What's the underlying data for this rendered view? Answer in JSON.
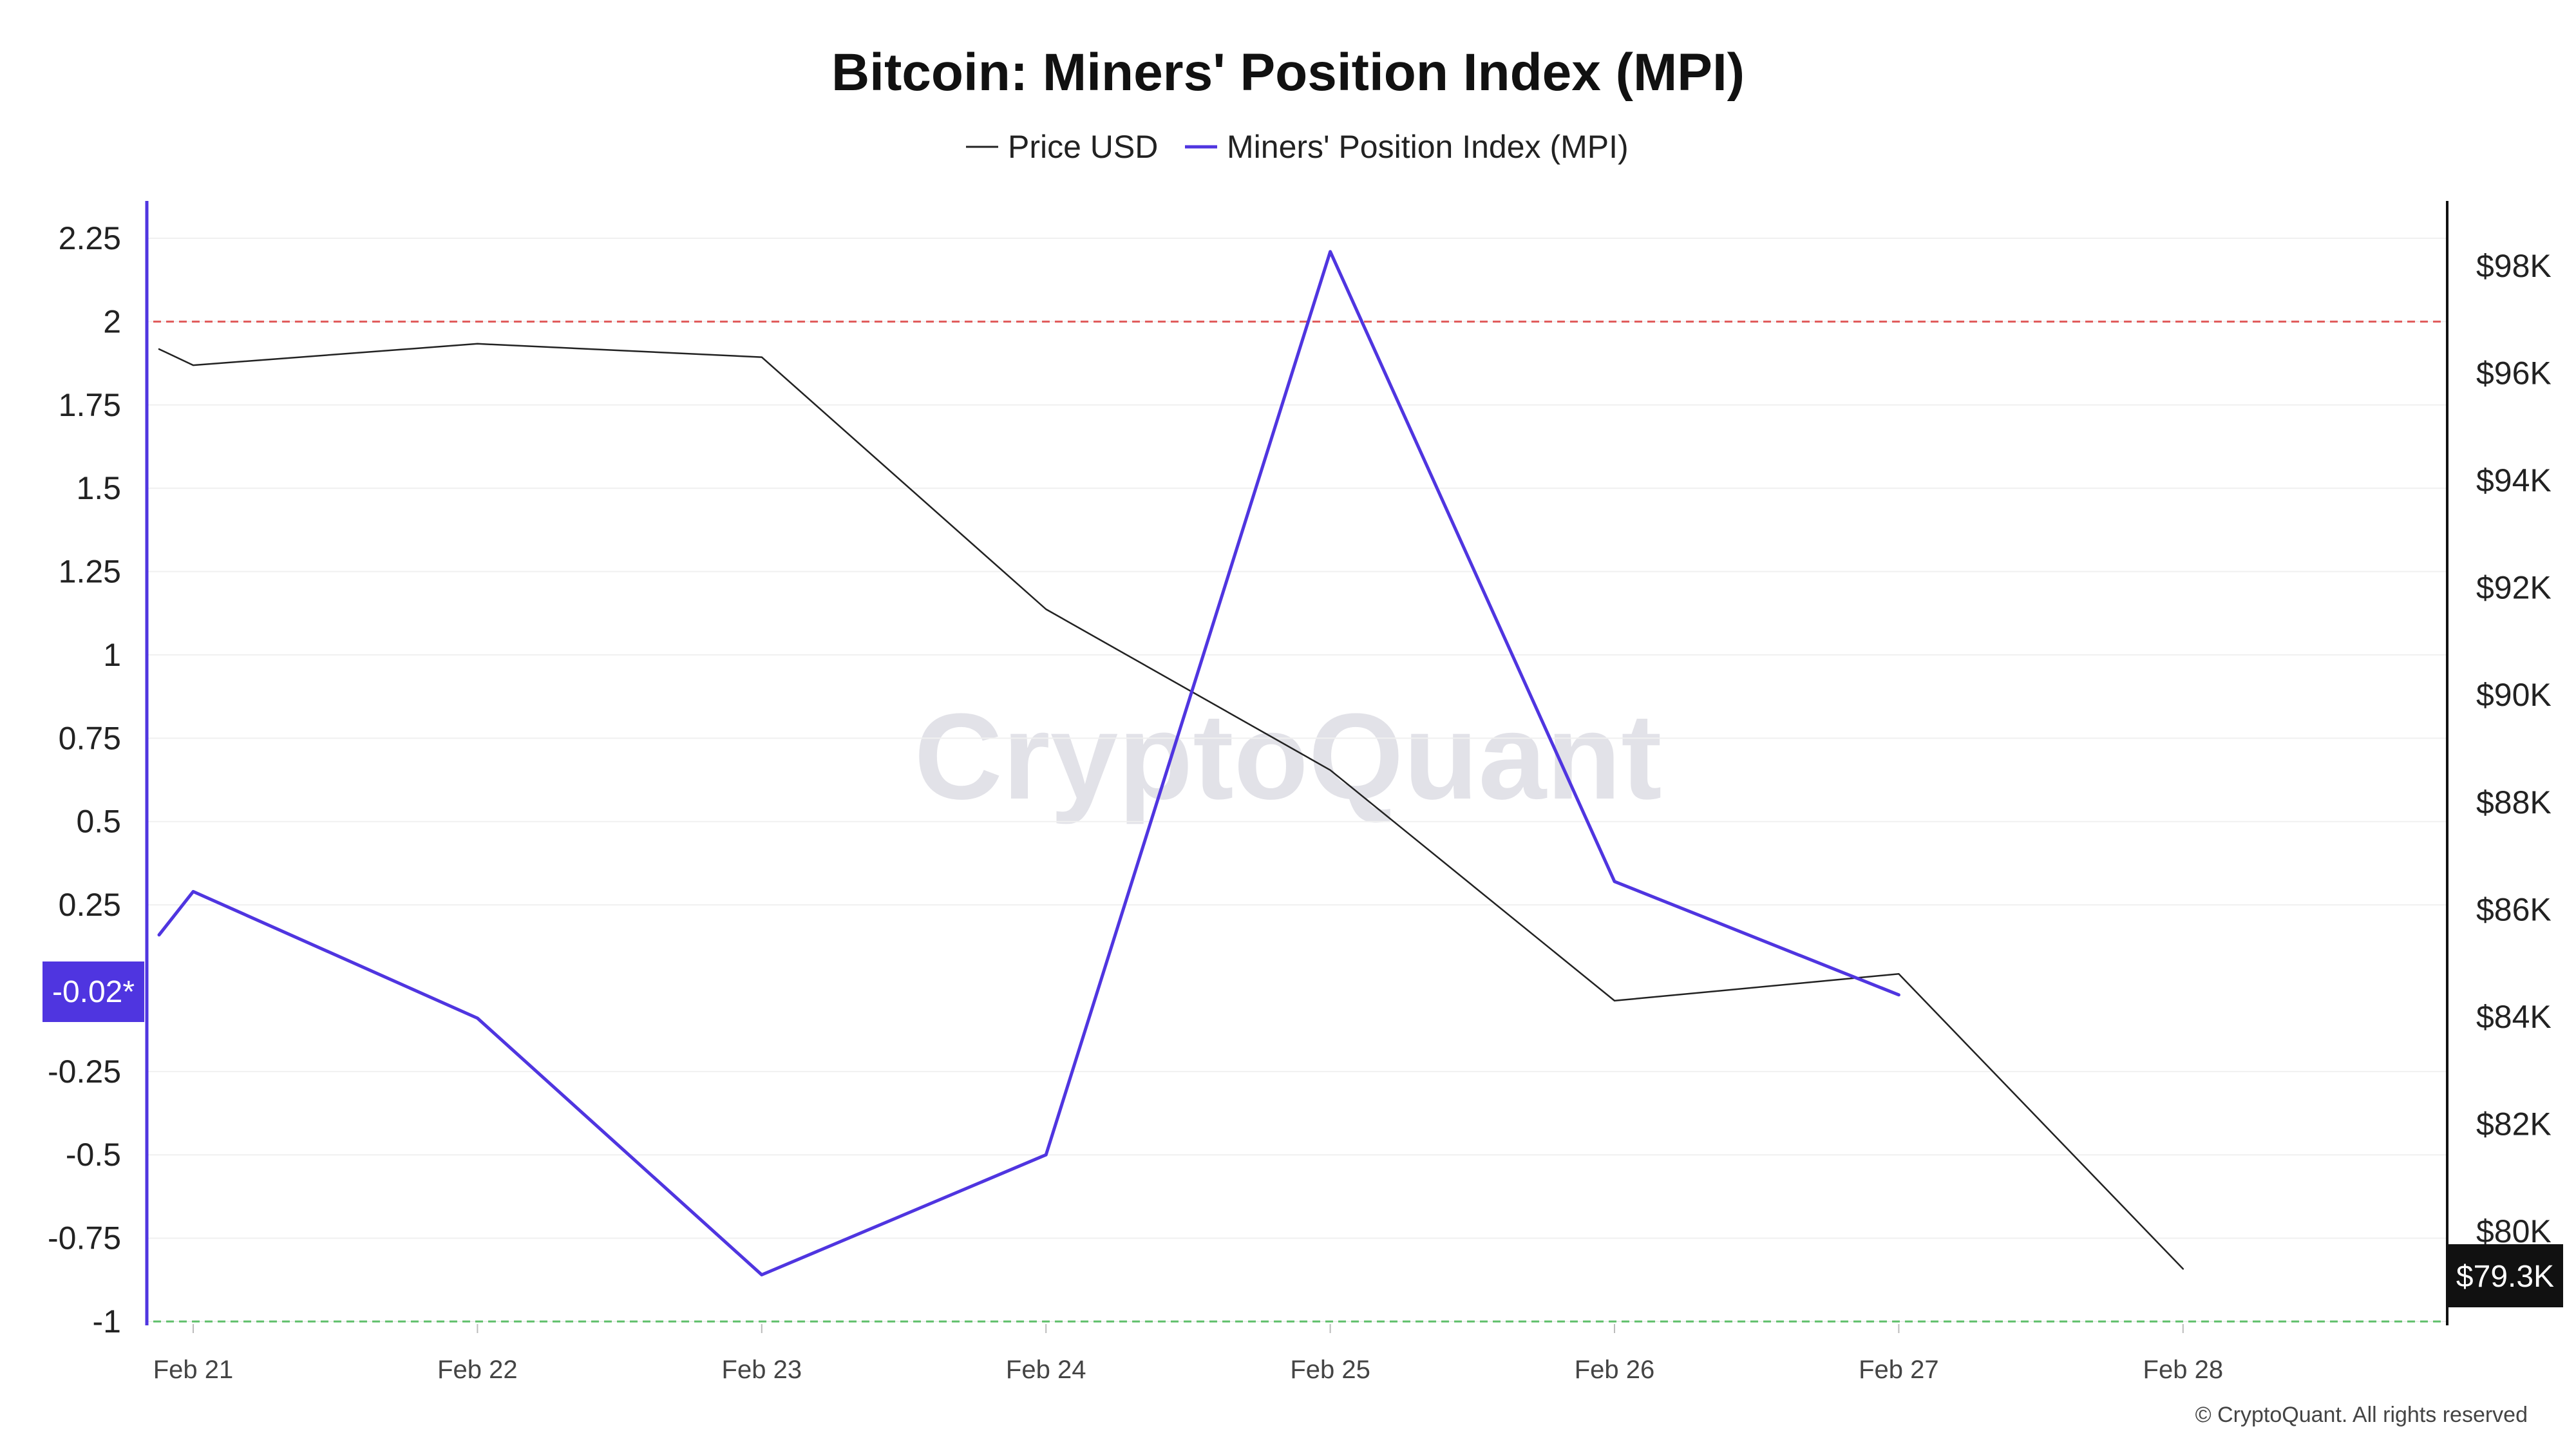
{
  "title": "Bitcoin: Miners' Position Index (MPI)",
  "legend": [
    {
      "label": "Price USD",
      "color": "#222222"
    },
    {
      "label": "Miners' Position Index (MPI)",
      "color": "#4f35e0"
    }
  ],
  "watermark": "CryptoQuant",
  "copyright": "© CryptoQuant. All rights reserved",
  "badges": {
    "mpi_current": "-0.02*",
    "price_current": "$79.3K"
  },
  "colors": {
    "mpi": "#4f35e0",
    "price": "#222222",
    "upper_threshold": "#e05a5a",
    "lower_threshold": "#5fbf6a",
    "grid": "#f0f0f0"
  },
  "chart_data": {
    "type": "line",
    "x": [
      "Feb 21",
      "Feb 22",
      "Feb 23",
      "Feb 24",
      "Feb 25",
      "Feb 26",
      "Feb 27",
      "Feb 28"
    ],
    "left_axis": {
      "ticks": [
        2.25,
        2,
        1.75,
        1.5,
        1.25,
        1,
        0.75,
        0.5,
        0.25,
        -0.25,
        -0.5,
        -0.75,
        -1
      ],
      "tick_labels": [
        "2.25",
        "2",
        "1.75",
        "1.5",
        "1.25",
        "1",
        "0.75",
        "0.5",
        "0.25",
        "-0.25",
        "-0.5",
        "-0.75",
        "-1"
      ],
      "range": [
        -1,
        2.25
      ]
    },
    "right_axis": {
      "ticks": [
        98000,
        96000,
        94000,
        92000,
        90000,
        88000,
        86000,
        84000,
        82000,
        80000
      ],
      "tick_labels": [
        "$98K",
        "$96K",
        "$94K",
        "$92K",
        "$90K",
        "$88K",
        "$86K",
        "$84K",
        "$82K",
        "$80K"
      ],
      "range": [
        78000,
        99000
      ]
    },
    "series": [
      {
        "name": "Price USD",
        "axis": "right",
        "points": [
          {
            "x": "Feb 21",
            "offset": -0.12,
            "y": 96450
          },
          {
            "x": "Feb 21",
            "offset": 0,
            "y": 96150
          },
          {
            "x": "Feb 22",
            "offset": 0,
            "y": 96550
          },
          {
            "x": "Feb 23",
            "offset": 0,
            "y": 96300
          },
          {
            "x": "Feb 24",
            "offset": 0,
            "y": 91600
          },
          {
            "x": "Feb 25",
            "offset": 0,
            "y": 88600
          },
          {
            "x": "Feb 26",
            "offset": 0,
            "y": 84300
          },
          {
            "x": "Feb 27",
            "offset": 0,
            "y": 84800
          },
          {
            "x": "Feb 28",
            "offset": 0,
            "y": 79300
          }
        ]
      },
      {
        "name": "Miners' Position Index (MPI)",
        "axis": "left",
        "points": [
          {
            "x": "Feb 21",
            "offset": -0.12,
            "y": 0.16
          },
          {
            "x": "Feb 21",
            "offset": 0,
            "y": 0.29
          },
          {
            "x": "Feb 22",
            "offset": 0,
            "y": -0.09
          },
          {
            "x": "Feb 23",
            "offset": 0,
            "y": -0.86
          },
          {
            "x": "Feb 24",
            "offset": 0,
            "y": -0.5
          },
          {
            "x": "Feb 25",
            "offset": 0,
            "y": 2.21
          },
          {
            "x": "Feb 26",
            "offset": 0,
            "y": 0.32
          },
          {
            "x": "Feb 27",
            "offset": 0,
            "y": -0.02
          }
        ]
      }
    ],
    "thresholds": [
      {
        "value": 2,
        "axis": "left",
        "style": "dashed",
        "color": "#e05a5a"
      },
      {
        "value": -1,
        "axis": "left",
        "style": "dashed",
        "color": "#5fbf6a"
      }
    ],
    "grid": true,
    "legend_position": "top-center"
  }
}
